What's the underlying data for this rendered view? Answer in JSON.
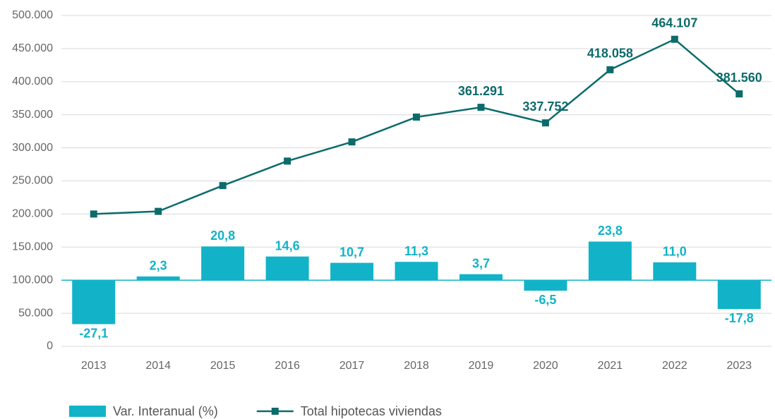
{
  "chart_data": {
    "type": "bar+line",
    "categories": [
      "2013",
      "2014",
      "2015",
      "2016",
      "2017",
      "2018",
      "2019",
      "2020",
      "2021",
      "2022",
      "2023"
    ],
    "series": [
      {
        "name": "Var. Interanual (%)",
        "type": "bar",
        "axis": "y2",
        "color": "#12b3c8",
        "values": [
          -27.1,
          2.3,
          20.8,
          14.6,
          10.7,
          11.3,
          3.7,
          -6.5,
          23.8,
          11.0,
          -17.8
        ],
        "value_labels": [
          "-27,1",
          "2,3",
          "20,8",
          "14,6",
          "10,7",
          "11,3",
          "3,7",
          "-6,5",
          "23,8",
          "11,0",
          "-17,8"
        ]
      },
      {
        "name": "Total hipotecas viviendas",
        "type": "line",
        "color": "#0d6b6b",
        "values": [
          200000,
          204000,
          243000,
          280000,
          309000,
          346500,
          361291,
          337752,
          418058,
          464107,
          381560
        ],
        "value_labels": [
          null,
          null,
          null,
          null,
          null,
          null,
          "361.291",
          "337.752",
          "418.058",
          "464.107",
          "381.560"
        ]
      }
    ],
    "ylim": [
      0,
      500000
    ],
    "yticks": [
      0,
      {
        "value": 50000,
        "label": "50.000"
      },
      {
        "value": 100000,
        "label": "100.000"
      },
      {
        "value": 150000,
        "label": "150.000"
      },
      {
        "value": 200000,
        "label": "200.000"
      },
      {
        "value": 250000,
        "label": "250.000"
      },
      {
        "value": 300000,
        "label": "300.000"
      },
      {
        "value": 350000,
        "label": "350.000"
      },
      {
        "value": 400000,
        "label": "400.000"
      },
      {
        "value": 450000,
        "label": "450.000"
      },
      {
        "value": 500000,
        "label": "500.000"
      }
    ],
    "y2lim": [
      -40.8,
      163.2
    ],
    "grid": true,
    "legend": "bottom-left"
  }
}
